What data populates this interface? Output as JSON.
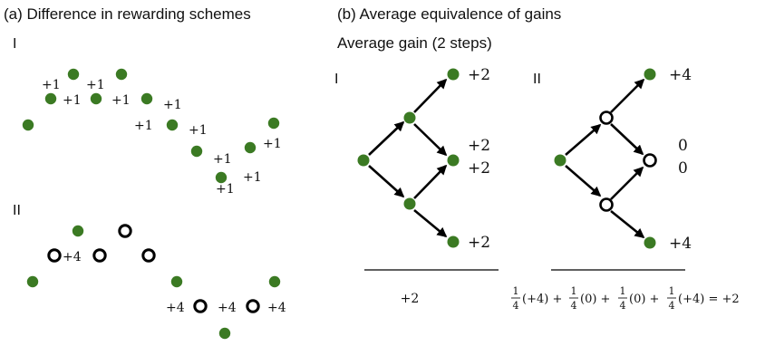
{
  "panel_a": {
    "title": "(a) Difference in rewarding schemes",
    "row1": {
      "label": "I",
      "rewards": [
        "+1",
        "+1",
        "+1",
        "+1",
        "+1",
        "+1",
        "+1",
        "+1",
        "+1",
        "+1",
        "+1"
      ]
    },
    "row2": {
      "label": "II",
      "rewards": [
        "+4",
        "+4",
        "+4",
        "+4"
      ]
    }
  },
  "panel_b": {
    "title": "(b) Average equivalence of gains",
    "subtitle": "Average gain (2 steps)",
    "tree1": {
      "label": "I",
      "leaf_rewards": [
        "+2",
        "+2",
        "+2",
        "+2"
      ],
      "result": "+2"
    },
    "tree2": {
      "label": "II",
      "leaf_rewards": [
        "+4",
        "0",
        "0",
        "+4"
      ],
      "equation": {
        "frac_num": "1",
        "frac_den": "4",
        "terms": [
          "(+4) +",
          "(0) +",
          "(0) +",
          "(+4) = +2"
        ]
      }
    }
  },
  "colors": {
    "node_green": "#3b7a23",
    "open_node_stroke": "#000000",
    "text": "#111111"
  }
}
